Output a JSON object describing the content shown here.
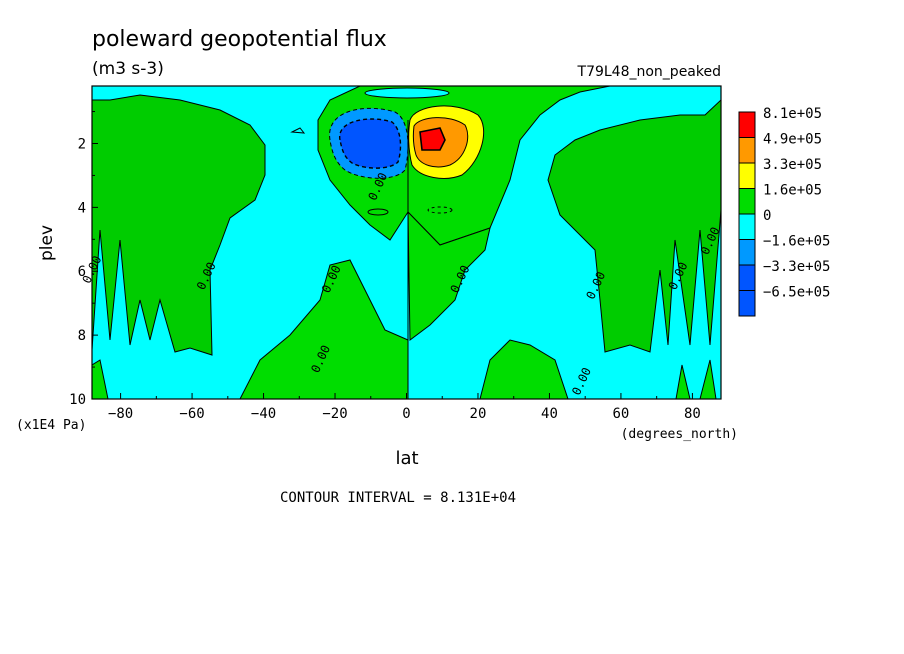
{
  "chart_data": {
    "type": "heatmap",
    "title": "poleward geopotential flux",
    "subtitle": "(m3 s-3)",
    "dataset_label": "T79L48_non_peaked",
    "xlabel": "lat",
    "x_units": "(degrees_north)",
    "ylabel": "plev",
    "y_units": "(x1E4 Pa)",
    "xlim": [
      -88,
      88
    ],
    "ylim": [
      10,
      0.2
    ],
    "x_ticks": [
      -80,
      -60,
      -40,
      -20,
      0,
      20,
      40,
      60,
      80
    ],
    "y_ticks": [
      2,
      4,
      6,
      8,
      10
    ],
    "contour_interval_text": "CONTOUR INTERVAL = 8.131E+04",
    "contour_label": "0.00",
    "contour_labels": [
      {
        "lat": -87,
        "plev": 6.0
      },
      {
        "lat": -55,
        "plev": 6.2
      },
      {
        "lat": -20,
        "plev": 6.3
      },
      {
        "lat": -23,
        "plev": 8.8
      },
      {
        "lat": -7,
        "plev": 3.4
      },
      {
        "lat": 16,
        "plev": 6.3
      },
      {
        "lat": 50,
        "plev": 9.5
      },
      {
        "lat": 54,
        "plev": 6.5
      },
      {
        "lat": 77,
        "plev": 6.2
      },
      {
        "lat": 86,
        "plev": 5.1
      }
    ],
    "legend": {
      "placement": "right",
      "levels": [
        {
          "label": "8.1e+05",
          "color": "#ff0000"
        },
        {
          "label": "4.9e+05",
          "color": "#ff9900"
        },
        {
          "label": "3.3e+05",
          "color": "#ffff00"
        },
        {
          "label": "1.6e+05",
          "color": "#00dd00"
        },
        {
          "label": "0",
          "color": "#00ffff"
        },
        {
          "label": "-1.6e+05",
          "color": "#0099ff"
        },
        {
          "label": "-3.3e+05",
          "color": "#0055ff"
        },
        {
          "label": "-6.5e+05",
          "color": "#0055ff"
        }
      ]
    },
    "colors": {
      "positive": "#00dd00",
      "negative": "#00ffff",
      "neg_mid": "#0099ff",
      "neg_strong": "#0055ff",
      "pos_yellow": "#ffff00",
      "pos_orange": "#ff9900",
      "pos_red": "#ff0000"
    },
    "grid": false
  }
}
